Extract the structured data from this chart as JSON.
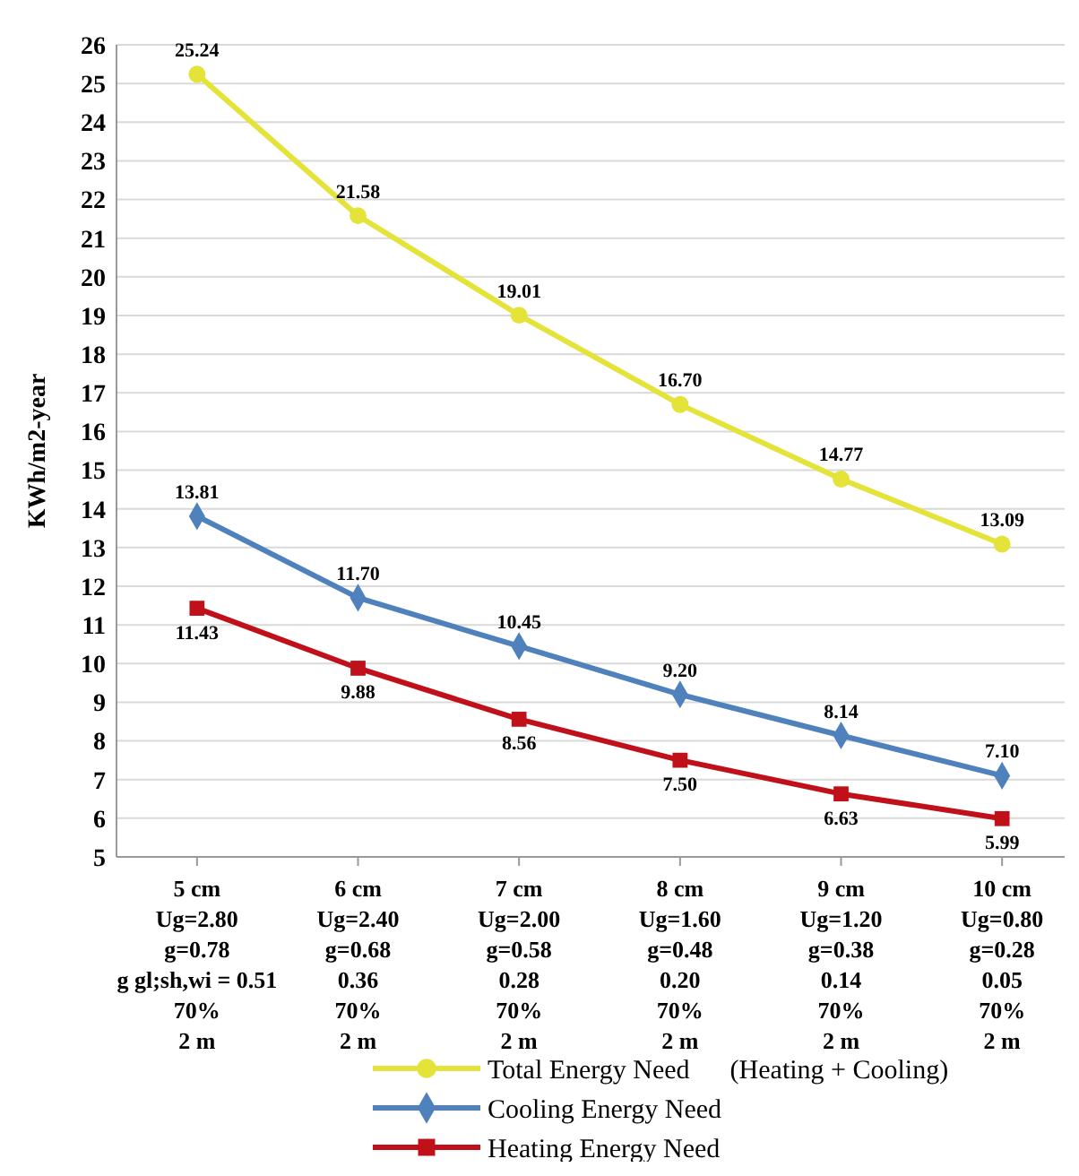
{
  "chart_data": {
    "type": "line",
    "ylabel": "KWh/m2-year",
    "categories": [
      "5 cm\nUg=2.80\ng=0.78\ng gl;sh,wi = 0.51\n70%\n2 m",
      "6 cm\nUg=2.40\ng=0.68\n0.36\n70%\n2 m",
      "7 cm\nUg=2.00\ng=0.58\n0.28\n70%\n2 m",
      "8 cm\nUg=1.60\ng=0.48\n0.20\n70%\n2 m",
      "9 cm\nUg=1.20\ng=0.38\n0.14\n70%\n2 m",
      "10 cm\nUg=0.80\ng=0.28\n0.05\n70%\n2 m"
    ],
    "series": [
      {
        "name": "Total Energy Need      (Heating + Cooling)",
        "color": "#e3e33a",
        "marker": "circle",
        "values": [
          25.24,
          21.58,
          19.01,
          16.7,
          14.77,
          13.09
        ],
        "value_labels": [
          "25.24",
          "21.58",
          "19.01",
          "16.70",
          "14.77",
          "13.09"
        ]
      },
      {
        "name": "Cooling Energy Need",
        "color": "#4f81bd",
        "marker": "diamond",
        "values": [
          13.81,
          11.7,
          10.45,
          9.2,
          8.14,
          7.1
        ],
        "value_labels": [
          "13.81",
          "11.70",
          "10.45",
          "9.20",
          "8.14",
          "7.10"
        ]
      },
      {
        "name": "Heating Energy Need",
        "color": "#c0111a",
        "marker": "square",
        "values": [
          11.43,
          9.88,
          8.56,
          7.5,
          6.63,
          5.99
        ],
        "value_labels": [
          "11.43",
          "9.88",
          "8.56",
          "7.50",
          "6.63",
          "5.99"
        ]
      }
    ],
    "ylim": [
      5,
      26
    ],
    "yticks": [
      5,
      6,
      7,
      8,
      9,
      10,
      11,
      12,
      13,
      14,
      15,
      16,
      17,
      18,
      19,
      20,
      21,
      22,
      23,
      24,
      25,
      26
    ],
    "grid": "y",
    "legend": "bottom"
  }
}
